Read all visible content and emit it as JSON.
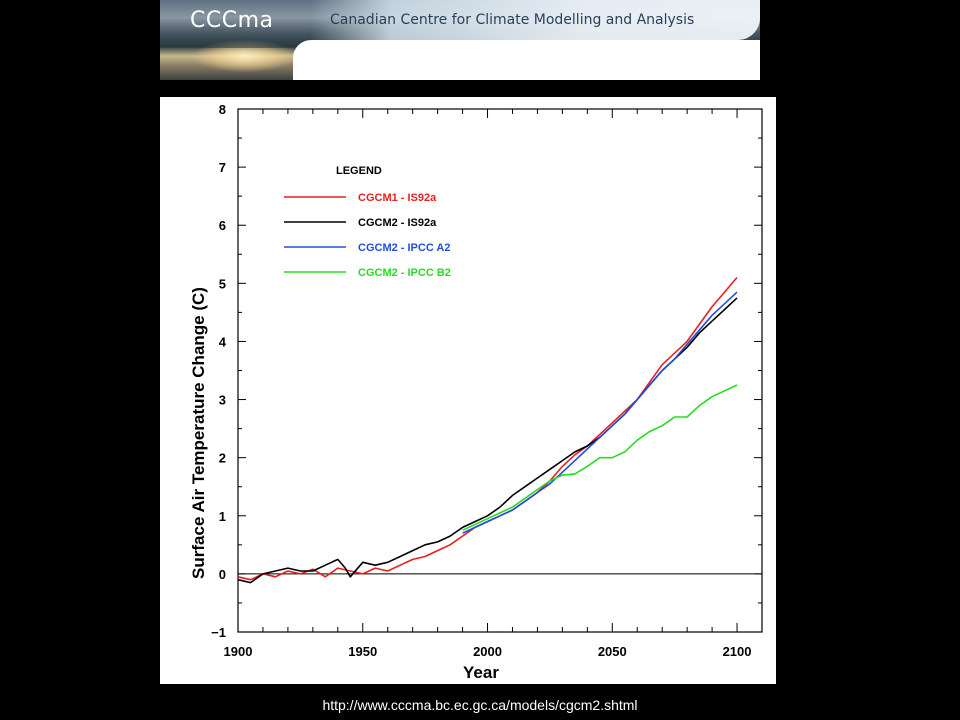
{
  "banner": {
    "logo": "CCCma",
    "org_name": "Canadian Centre for Climate Modelling and Analysis"
  },
  "footer": {
    "url": "http://www.cccma.bc.ec.gc.ca/models/cgcm2.shtml"
  },
  "chart_data": {
    "type": "line",
    "title": "",
    "xlabel": "Year",
    "ylabel": "Surface Air Temperature Change (C)",
    "xlim": [
      1900,
      2110
    ],
    "ylim": [
      -1,
      8
    ],
    "x_ticks": [
      1900,
      1950,
      2000,
      2050,
      2100
    ],
    "y_ticks": [
      -1,
      0,
      1,
      2,
      3,
      4,
      5,
      6,
      7,
      8
    ],
    "legend_title": "LEGEND",
    "legend_position": "top-left",
    "grid": false,
    "reference_line": 0,
    "series": [
      {
        "name": "CGCM1 - IS92a",
        "color": "#e8201c",
        "x": [
          1900,
          1905,
          1910,
          1915,
          1920,
          1925,
          1930,
          1935,
          1940,
          1945,
          1950,
          1955,
          1960,
          1965,
          1970,
          1975,
          1980,
          1985,
          1990,
          1995,
          2000,
          2005,
          2010,
          2015,
          2020,
          2025,
          2030,
          2035,
          2040,
          2045,
          2050,
          2055,
          2060,
          2065,
          2070,
          2075,
          2080,
          2085,
          2090,
          2095,
          2100
        ],
        "y": [
          -0.05,
          -0.1,
          0.0,
          -0.05,
          0.05,
          0.0,
          0.08,
          -0.05,
          0.1,
          0.05,
          0.0,
          0.1,
          0.05,
          0.15,
          0.25,
          0.3,
          0.4,
          0.5,
          0.65,
          0.8,
          0.9,
          1.0,
          1.1,
          1.25,
          1.4,
          1.6,
          1.85,
          2.05,
          2.2,
          2.4,
          2.6,
          2.8,
          3.0,
          3.3,
          3.6,
          3.8,
          4.0,
          4.3,
          4.6,
          4.85,
          5.1
        ]
      },
      {
        "name": "CGCM2 - IS92a",
        "color": "#000000",
        "x": [
          1900,
          1905,
          1910,
          1915,
          1920,
          1925,
          1930,
          1935,
          1940,
          1943,
          1945,
          1950,
          1955,
          1960,
          1965,
          1970,
          1975,
          1980,
          1985,
          1990,
          1995,
          2000,
          2005,
          2010,
          2015,
          2020,
          2025,
          2030,
          2035,
          2040,
          2045,
          2050,
          2055,
          2060,
          2065,
          2070,
          2075,
          2080,
          2085,
          2090,
          2095,
          2100
        ],
        "y": [
          -0.1,
          -0.15,
          0.0,
          0.05,
          0.1,
          0.05,
          0.05,
          0.15,
          0.25,
          0.1,
          -0.05,
          0.2,
          0.15,
          0.2,
          0.3,
          0.4,
          0.5,
          0.55,
          0.65,
          0.8,
          0.9,
          1.0,
          1.15,
          1.35,
          1.5,
          1.65,
          1.8,
          1.95,
          2.1,
          2.2,
          2.35,
          2.55,
          2.75,
          3.0,
          3.25,
          3.5,
          3.7,
          3.9,
          4.15,
          4.35,
          4.55,
          4.75
        ]
      },
      {
        "name": "CGCM2 - IPCC A2",
        "color": "#1f4fe0",
        "x": [
          1990,
          1995,
          2000,
          2005,
          2010,
          2015,
          2020,
          2025,
          2030,
          2035,
          2040,
          2045,
          2050,
          2055,
          2060,
          2065,
          2070,
          2075,
          2080,
          2085,
          2090,
          2095,
          2100
        ],
        "y": [
          0.7,
          0.8,
          0.9,
          1.0,
          1.1,
          1.25,
          1.4,
          1.55,
          1.75,
          1.95,
          2.15,
          2.35,
          2.55,
          2.75,
          3.0,
          3.25,
          3.5,
          3.7,
          3.95,
          4.2,
          4.45,
          4.65,
          4.85
        ]
      },
      {
        "name": "CGCM2 - IPCC B2",
        "color": "#22dd22",
        "x": [
          1990,
          1995,
          2000,
          2005,
          2010,
          2015,
          2020,
          2025,
          2030,
          2035,
          2040,
          2045,
          2050,
          2055,
          2060,
          2065,
          2070,
          2075,
          2080,
          2085,
          2090,
          2095,
          2100
        ],
        "y": [
          0.75,
          0.85,
          0.95,
          1.05,
          1.15,
          1.3,
          1.45,
          1.6,
          1.7,
          1.72,
          1.85,
          2.0,
          2.0,
          2.1,
          2.3,
          2.45,
          2.55,
          2.7,
          2.7,
          2.9,
          3.05,
          3.15,
          3.25
        ]
      }
    ]
  }
}
